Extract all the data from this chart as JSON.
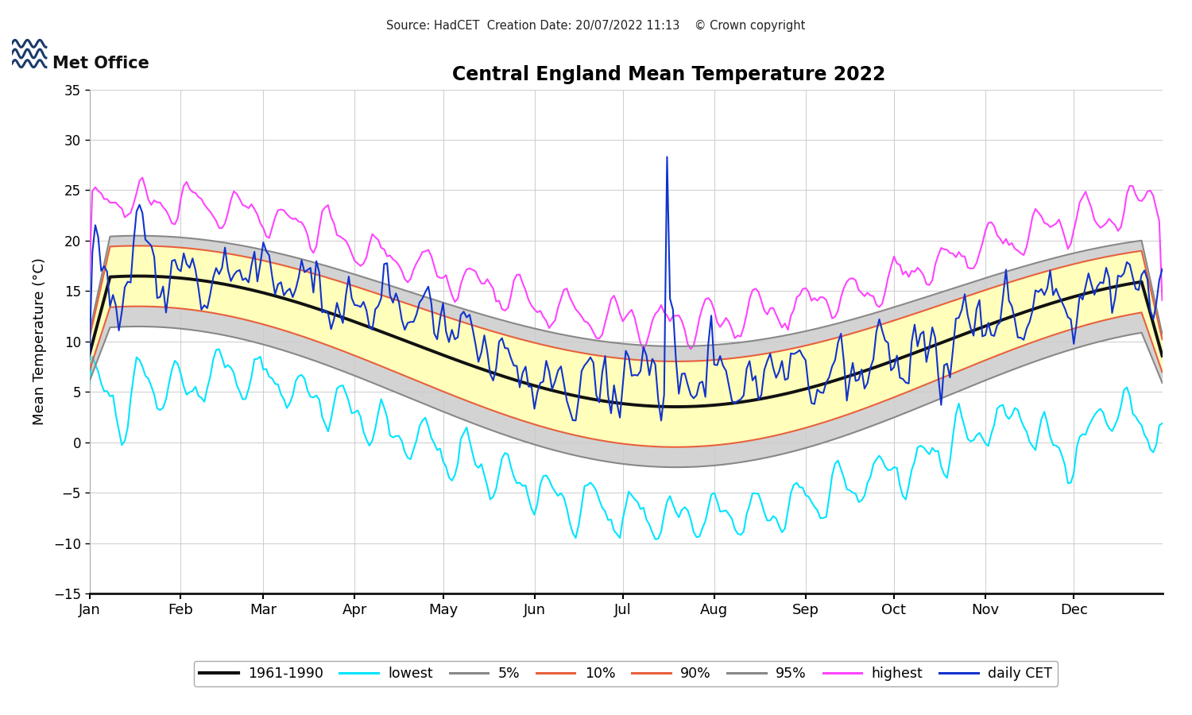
{
  "title": "Central England Mean Temperature 2022",
  "ylabel": "Mean Temperature (°C)",
  "source_text": "Source: HadCET  Creation Date: 20/07/2022 11:13    © Crown copyright",
  "ylim": [
    -15,
    35
  ],
  "yticks": [
    -15,
    -10,
    -5,
    0,
    5,
    10,
    15,
    20,
    25,
    30,
    35
  ],
  "month_labels": [
    "Jan",
    "Feb",
    "Mar",
    "Apr",
    "May",
    "Jun",
    "Jul",
    "Aug",
    "Sep",
    "Oct",
    "Nov",
    "Dec"
  ],
  "colors": {
    "mean_1961_1990": "#111111",
    "lowest": "#00E5FF",
    "pct5": "#888888",
    "pct10": "#E8603C",
    "pct90": "#E8603C",
    "pct95": "#888888",
    "highest": "#FF44FF",
    "daily_cet": "#1133CC",
    "fill_10_90": "#FFFFBB",
    "fill_5_95_low": "#CCCCCC",
    "fill_5_95_high": "#CCCCCC"
  },
  "legend_labels": [
    "1961-1990",
    "lowest",
    "5%",
    "10%",
    "90%",
    "95%",
    "highest",
    "daily CET"
  ],
  "background_color": "#ffffff",
  "grid_color": "#cccccc",
  "month_starts_doy": [
    1,
    32,
    60,
    91,
    121,
    152,
    182,
    213,
    244,
    274,
    305,
    335
  ]
}
